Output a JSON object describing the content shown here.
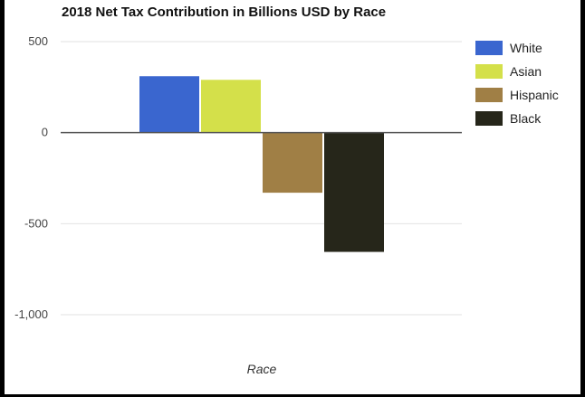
{
  "chart_data": {
    "type": "bar",
    "title": "2018 Net Tax Contribution in Billions USD by Race",
    "xlabel": "Race",
    "ylabel": "",
    "ylim": [
      -1000,
      500
    ],
    "yticks": [
      500,
      0,
      -500,
      -1000
    ],
    "ytick_labels": [
      "500",
      "0",
      "-500",
      "-1,000"
    ],
    "grid": true,
    "legend_position": "right",
    "series": [
      {
        "name": "White",
        "value": 310,
        "color": "#3a66cf"
      },
      {
        "name": "Asian",
        "value": 290,
        "color": "#d4e04a"
      },
      {
        "name": "Hispanic",
        "value": -330,
        "color": "#a07f45"
      },
      {
        "name": "Black",
        "value": -655,
        "color": "#26261a"
      }
    ]
  }
}
